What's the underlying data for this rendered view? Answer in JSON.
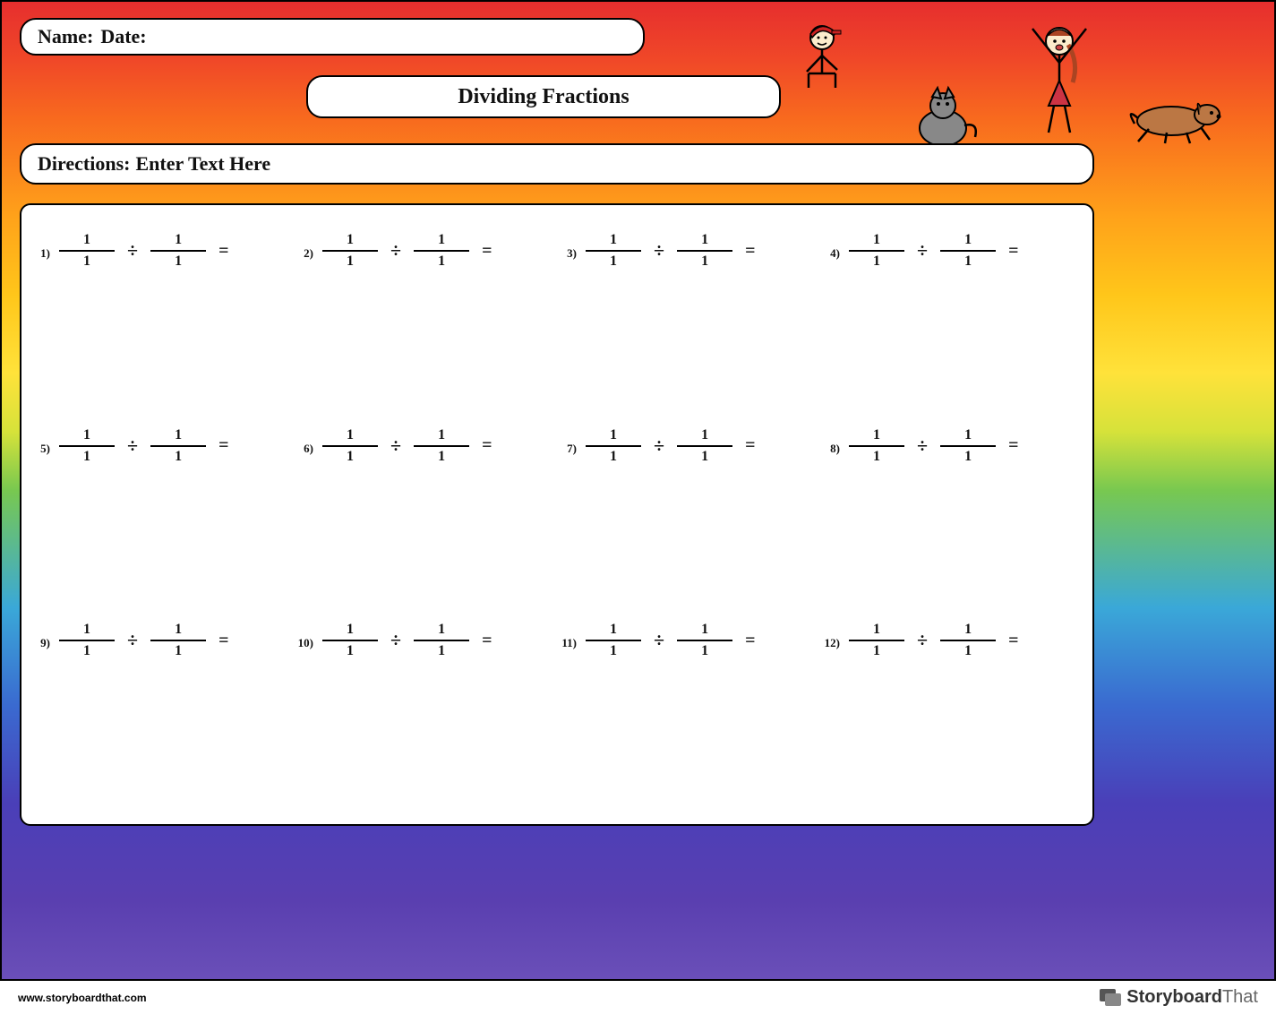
{
  "header": {
    "name_label": "Name:",
    "date_label": "Date:",
    "title": "Dividing Fractions",
    "directions_label": "Directions:",
    "directions_text": "Enter Text Here"
  },
  "operator": "÷",
  "equals": "=",
  "problems": [
    {
      "n": "1)",
      "a_num": "1",
      "a_den": "1",
      "b_num": "1",
      "b_den": "1"
    },
    {
      "n": "2)",
      "a_num": "1",
      "a_den": "1",
      "b_num": "1",
      "b_den": "1"
    },
    {
      "n": "3)",
      "a_num": "1",
      "a_den": "1",
      "b_num": "1",
      "b_den": "1"
    },
    {
      "n": "4)",
      "a_num": "1",
      "a_den": "1",
      "b_num": "1",
      "b_den": "1"
    },
    {
      "n": "5)",
      "a_num": "1",
      "a_den": "1",
      "b_num": "1",
      "b_den": "1"
    },
    {
      "n": "6)",
      "a_num": "1",
      "a_den": "1",
      "b_num": "1",
      "b_den": "1"
    },
    {
      "n": "7)",
      "a_num": "1",
      "a_den": "1",
      "b_num": "1",
      "b_den": "1"
    },
    {
      "n": "8)",
      "a_num": "1",
      "a_den": "1",
      "b_num": "1",
      "b_den": "1"
    },
    {
      "n": "9)",
      "a_num": "1",
      "a_den": "1",
      "b_num": "1",
      "b_den": "1"
    },
    {
      "n": "10)",
      "a_num": "1",
      "a_den": "1",
      "b_num": "1",
      "b_den": "1"
    },
    {
      "n": "11)",
      "a_num": "1",
      "a_den": "1",
      "b_num": "1",
      "b_den": "1"
    },
    {
      "n": "12)",
      "a_num": "1",
      "a_den": "1",
      "b_num": "1",
      "b_den": "1"
    }
  ],
  "footer": {
    "url": "www.storyboardthat.com",
    "brand_a": "Storyboard",
    "brand_b": "That"
  },
  "characters": {
    "boy_hat_color": "#cc2222",
    "boy_shirt_color": "#ffffff",
    "girl_hair_color": "#aa4422",
    "girl_outfit_color": "#cc3344",
    "cat_color": "#888888",
    "dog_color": "#bb7744"
  },
  "style": {
    "background_gradient": [
      "#e62e2e",
      "#f86a1e",
      "#ffc61a",
      "#78c850",
      "#3a6ad0",
      "#5a3fb0"
    ],
    "box_bg": "#ffffff",
    "box_border": "#000000",
    "text_color": "#111111",
    "fraction_bar_color": "#000000"
  }
}
